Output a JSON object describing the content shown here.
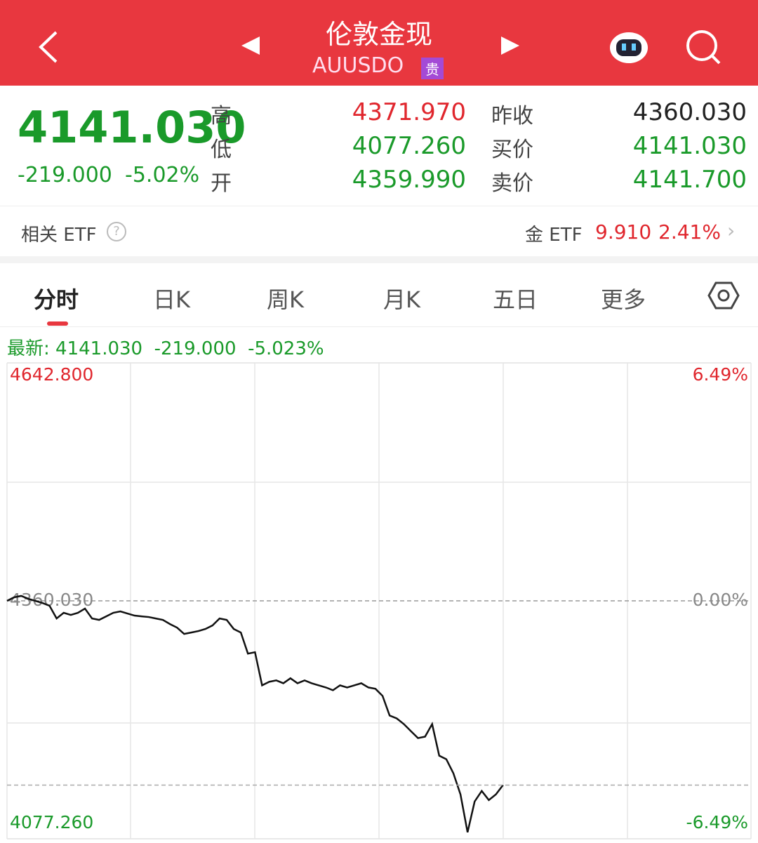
{
  "header": {
    "title": "伦敦金现",
    "code": "AUUSDO",
    "badge": "贵"
  },
  "quote": {
    "price": "4141.030",
    "change": "-219.000",
    "change_pct": "-5.02%",
    "fields": [
      {
        "label": "高",
        "value": "4371.970"
      },
      {
        "label": "低",
        "value": "4077.260"
      },
      {
        "label": "开",
        "value": "4359.990"
      }
    ],
    "fields2": [
      {
        "label": "昨收",
        "value": "4360.030"
      },
      {
        "label": "买价",
        "value": "4141.030"
      },
      {
        "label": "卖价",
        "value": "4141.700"
      }
    ]
  },
  "etf": {
    "label": "相关 ETF",
    "name": "金 ETF",
    "price": "9.910",
    "pct": "2.41%"
  },
  "tabs": [
    "分时",
    "日K",
    "周K",
    "月K",
    "五日",
    "更多"
  ],
  "chart_data": {
    "type": "line",
    "latest_label": "最新:",
    "latest": "4141.030",
    "latest_change": "-219.000",
    "latest_pct": "-5.023%",
    "color": "#111111",
    "values": [
      4360,
      4364.2,
      4365.9,
      4362.5,
      4360,
      4357.5,
      4354.2,
      4339.1,
      4345.8,
      4343.3,
      4345.8,
      4350.8,
      4339.1,
      4337.4,
      4341.6,
      4345.8,
      4347.5,
      4345,
      4342.5,
      4341.6,
      4340.8,
      4339.1,
      4337.4,
      4332.4,
      4328.2,
      4320.7,
      4322.4,
      4324.1,
      4326.6,
      4330.8,
      4339.1,
      4337.4,
      4326.6,
      4322.4,
      4297.3,
      4299,
      4259.6,
      4263.8,
      4265.5,
      4262.1,
      4268,
      4262.1,
      4265.5,
      4262.1,
      4259.6,
      4257.1,
      4253.8,
      4259.6,
      4257.1,
      4259.6,
      4262.1,
      4257.1,
      4255.5,
      4247.1,
      4223.7,
      4220.3,
      4213.6,
      4205.2,
      4196.9,
      4198.6,
      4213.6,
      4176,
      4171.8,
      4155.1,
      4130,
      4085,
      4121.6,
      4134.1,
      4123.3,
      4130,
      4141.03,
      null,
      null,
      null,
      null,
      null,
      null,
      null,
      null,
      null,
      null,
      null,
      null,
      null,
      null,
      null,
      null,
      null,
      null,
      null,
      null,
      null,
      null,
      null,
      null,
      null,
      null,
      null,
      null,
      null,
      null,
      null,
      null,
      null,
      null
    ],
    "ylim": [
      4077.26,
      4642.8
    ],
    "yticks": [
      {
        "value": 4077.26,
        "label": "4077.260"
      },
      {
        "value": 4360.03,
        "label": "4360.030"
      },
      {
        "value": 4642.8,
        "label": "4642.800"
      }
    ],
    "y2lim": [
      -6.49,
      6.49
    ],
    "y2ticks": [
      {
        "value": -6.49,
        "label": "-6.49%"
      },
      {
        "value": 0,
        "label": "0.00%"
      },
      {
        "value": 6.49,
        "label": "6.49%"
      }
    ]
  }
}
